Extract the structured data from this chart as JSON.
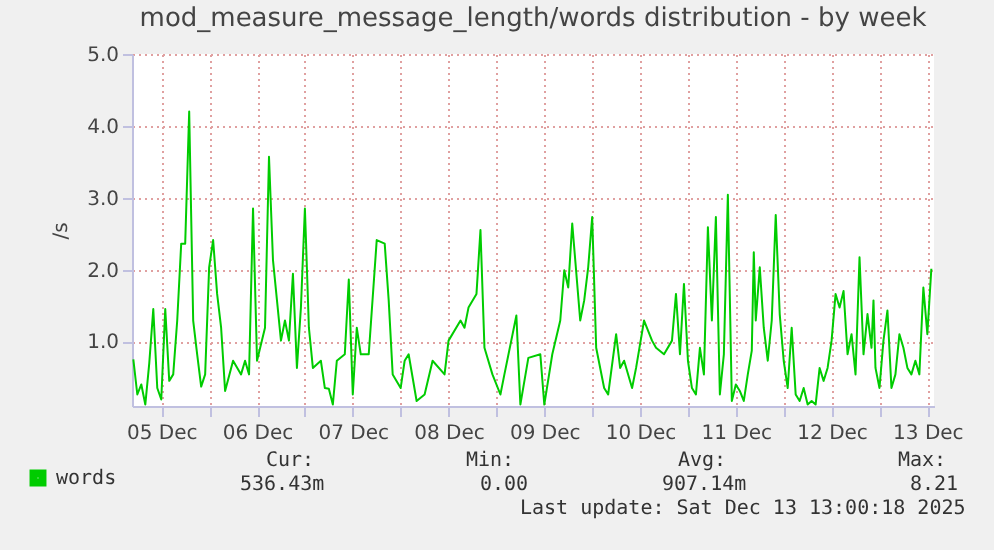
{
  "chart_data": {
    "type": "line",
    "title": "mod_measure_message_length/words distribution - by week",
    "ylabel": "/s",
    "xlim": [
      "2025-12-05T04:40",
      "2025-12-13T13:40"
    ],
    "xticks": [
      {
        "value": "2025-12-05T12:00",
        "label": "05 Dec"
      },
      {
        "value": "2025-12-06T00:00",
        "label": null
      },
      {
        "value": "2025-12-06T12:00",
        "label": "06 Dec"
      },
      {
        "value": "2025-12-07T00:00",
        "label": null
      },
      {
        "value": "2025-12-07T12:00",
        "label": "07 Dec"
      },
      {
        "value": "2025-12-08T00:00",
        "label": null
      },
      {
        "value": "2025-12-08T12:00",
        "label": "08 Dec"
      },
      {
        "value": "2025-12-09T00:00",
        "label": null
      },
      {
        "value": "2025-12-09T12:00",
        "label": "09 Dec"
      },
      {
        "value": "2025-12-10T00:00",
        "label": null
      },
      {
        "value": "2025-12-10T12:00",
        "label": "10 Dec"
      },
      {
        "value": "2025-12-11T00:00",
        "label": null
      },
      {
        "value": "2025-12-11T12:00",
        "label": "11 Dec"
      },
      {
        "value": "2025-12-12T00:00",
        "label": null
      },
      {
        "value": "2025-12-12T12:00",
        "label": "12 Dec"
      },
      {
        "value": "2025-12-13T00:00",
        "label": null
      },
      {
        "value": "2025-12-13T12:00",
        "label": "13 Dec"
      }
    ],
    "ylim": [
      0.1,
      5
    ],
    "yticks": [
      {
        "value": 1,
        "label": "1.0"
      },
      {
        "value": 2,
        "label": "2.0"
      },
      {
        "value": 3,
        "label": "3.0"
      },
      {
        "value": 4,
        "label": "4.0"
      },
      {
        "value": 5,
        "label": "5.0"
      }
    ],
    "grid": true,
    "legend": "bottom left",
    "x": [
      "2025-12-05T05:00",
      "2025-12-05T06:00",
      "2025-12-05T07:00",
      "2025-12-05T08:00",
      "2025-12-05T09:00",
      "2025-12-05T10:00",
      "2025-12-05T11:00",
      "2025-12-05T12:00",
      "2025-12-05T13:00",
      "2025-12-05T14:00",
      "2025-12-05T15:00",
      "2025-12-05T16:00",
      "2025-12-05T17:00",
      "2025-12-05T18:00",
      "2025-12-05T19:00",
      "2025-12-05T20:00",
      "2025-12-05T21:00",
      "2025-12-05T22:00",
      "2025-12-05T23:00",
      "2025-12-06T00:00",
      "2025-12-06T01:00",
      "2025-12-06T02:00",
      "2025-12-06T03:00",
      "2025-12-06T04:00",
      "2025-12-06T06:00",
      "2025-12-06T08:00",
      "2025-12-06T09:00",
      "2025-12-06T10:00",
      "2025-12-06T11:00",
      "2025-12-06T12:00",
      "2025-12-06T14:00",
      "2025-12-06T15:00",
      "2025-12-06T16:00",
      "2025-12-06T17:00",
      "2025-12-06T18:00",
      "2025-12-06T19:00",
      "2025-12-06T20:00",
      "2025-12-06T21:00",
      "2025-12-06T22:00",
      "2025-12-06T23:00",
      "2025-12-07T00:00",
      "2025-12-07T01:00",
      "2025-12-07T02:00",
      "2025-12-07T04:00",
      "2025-12-07T05:00",
      "2025-12-07T06:00",
      "2025-12-07T07:00",
      "2025-12-07T08:00",
      "2025-12-07T10:00",
      "2025-12-07T11:00",
      "2025-12-07T12:00",
      "2025-12-07T13:00",
      "2025-12-07T14:00",
      "2025-12-07T16:00",
      "2025-12-07T18:00",
      "2025-12-07T20:00",
      "2025-12-07T21:00",
      "2025-12-07T22:00",
      "2025-12-08T00:00",
      "2025-12-08T01:00",
      "2025-12-08T02:00",
      "2025-12-08T04:00",
      "2025-12-08T06:00",
      "2025-12-08T08:00",
      "2025-12-08T11:00",
      "2025-12-08T12:00",
      "2025-12-08T15:00",
      "2025-12-08T16:00",
      "2025-12-08T17:00",
      "2025-12-08T19:00",
      "2025-12-08T20:00",
      "2025-12-08T21:00",
      "2025-12-08T23:00",
      "2025-12-09T01:00",
      "2025-12-09T02:00",
      "2025-12-09T05:00",
      "2025-12-09T06:00",
      "2025-12-09T08:00",
      "2025-12-09T11:00",
      "2025-12-09T12:00",
      "2025-12-09T14:00",
      "2025-12-09T16:00",
      "2025-12-09T17:00",
      "2025-12-09T18:00",
      "2025-12-09T19:00",
      "2025-12-09T21:00",
      "2025-12-09T22:00",
      "2025-12-09T23:00",
      "2025-12-10T00:00",
      "2025-12-10T01:00",
      "2025-12-10T03:00",
      "2025-12-10T04:00",
      "2025-12-10T06:00",
      "2025-12-10T07:00",
      "2025-12-10T08:00",
      "2025-12-10T10:00",
      "2025-12-10T11:00",
      "2025-12-10T13:00",
      "2025-12-10T15:00",
      "2025-12-10T16:00",
      "2025-12-10T18:00",
      "2025-12-10T20:00",
      "2025-12-10T21:00",
      "2025-12-10T22:00",
      "2025-12-10T23:00",
      "2025-12-11T00:00",
      "2025-12-11T01:00",
      "2025-12-11T02:00",
      "2025-12-11T03:00",
      "2025-12-11T04:00",
      "2025-12-11T05:00",
      "2025-12-11T06:00",
      "2025-12-11T07:00",
      "2025-12-11T08:00",
      "2025-12-11T09:00",
      "2025-12-11T10:00",
      "2025-12-11T11:00",
      "2025-12-11T12:00",
      "2025-12-11T13:00",
      "2025-12-11T14:00",
      "2025-12-11T15:00",
      "2025-12-11T16:00",
      "2025-12-11T16:30",
      "2025-12-11T17:00",
      "2025-12-11T18:00",
      "2025-12-11T19:00",
      "2025-12-11T20:00",
      "2025-12-11T21:00",
      "2025-12-11T22:00",
      "2025-12-11T23:00",
      "2025-12-12T00:00",
      "2025-12-12T01:00",
      "2025-12-12T02:00",
      "2025-12-12T03:00",
      "2025-12-12T04:00",
      "2025-12-12T05:00",
      "2025-12-12T06:00",
      "2025-12-12T07:00",
      "2025-12-12T08:00",
      "2025-12-12T09:00",
      "2025-12-12T10:00",
      "2025-12-12T11:00",
      "2025-12-12T12:00",
      "2025-12-12T13:00",
      "2025-12-12T14:00",
      "2025-12-12T15:00",
      "2025-12-12T16:00",
      "2025-12-12T17:00",
      "2025-12-12T18:00",
      "2025-12-12T19:00",
      "2025-12-12T20:00",
      "2025-12-12T21:00",
      "2025-12-12T22:00",
      "2025-12-12T22:30",
      "2025-12-12T23:00",
      "2025-12-13T00:00",
      "2025-12-13T01:00",
      "2025-12-13T02:00",
      "2025-12-13T03:00",
      "2025-12-13T04:00",
      "2025-12-13T05:00",
      "2025-12-13T06:00",
      "2025-12-13T07:00",
      "2025-12-13T08:00",
      "2025-12-13T09:00",
      "2025-12-13T10:00",
      "2025-12-13T11:00",
      "2025-12-13T12:00",
      "2025-12-13T13:00"
    ],
    "series": [
      {
        "name": "words",
        "color": "#00cc00",
        "values": [
          0.75,
          0.26,
          0.4,
          0.12,
          0.7,
          1.45,
          0.35,
          0.19,
          1.45,
          0.45,
          0.54,
          1.29,
          2.36,
          2.36,
          4.2,
          1.29,
          0.82,
          0.37,
          0.54,
          2.03,
          2.41,
          1.66,
          1.19,
          0.31,
          0.73,
          0.54,
          0.73,
          0.54,
          2.85,
          0.73,
          1.19,
          3.57,
          2.13,
          1.57,
          1.01,
          1.29,
          1.01,
          1.94,
          0.63,
          1.47,
          2.85,
          1.19,
          0.63,
          0.73,
          0.35,
          0.34,
          0.12,
          0.73,
          0.82,
          1.86,
          0.26,
          1.19,
          0.82,
          0.82,
          2.41,
          2.36,
          1.57,
          0.54,
          0.35,
          0.73,
          0.82,
          0.17,
          0.26,
          0.73,
          0.54,
          1.01,
          1.29,
          1.19,
          1.47,
          1.66,
          2.55,
          0.91,
          0.54,
          0.26,
          0.54,
          1.36,
          0.12,
          0.77,
          0.82,
          0.12,
          0.82,
          1.29,
          1.99,
          1.75,
          2.64,
          1.29,
          1.57,
          2.03,
          2.73,
          0.91,
          0.35,
          0.26,
          1.1,
          0.63,
          0.73,
          0.35,
          0.63,
          1.29,
          1.01,
          0.91,
          0.82,
          1.01,
          1.66,
          0.82,
          1.8,
          0.73,
          0.35,
          0.26,
          0.91,
          0.54,
          2.59,
          1.29,
          2.73,
          0.26,
          0.82,
          3.04,
          0.17,
          0.4,
          0.31,
          0.17,
          0.54,
          0.87,
          2.24,
          1.29,
          2.03,
          1.19,
          0.73,
          1.29,
          2.76,
          1.38,
          0.73,
          0.35,
          1.19,
          0.26,
          0.17,
          0.35,
          0.12,
          0.17,
          0.12,
          0.63,
          0.45,
          0.63,
          1.01,
          1.66,
          1.47,
          1.7,
          0.82,
          1.1,
          0.54,
          2.17,
          0.82,
          1.38,
          0.91,
          1.57,
          0.63,
          0.35,
          1.01,
          1.43,
          0.35,
          0.54,
          1.1,
          0.91,
          0.63,
          0.54,
          0.73,
          0.54,
          1.75,
          1.1,
          2.01
        ]
      }
    ],
    "annotations": [
      "Cur:",
      "Min:",
      "Avg:",
      "Max:",
      "536.43m",
      "0.00",
      "907.14m",
      "8.21",
      "Last update: Sat Dec 13 13:00:18 2025"
    ]
  }
}
